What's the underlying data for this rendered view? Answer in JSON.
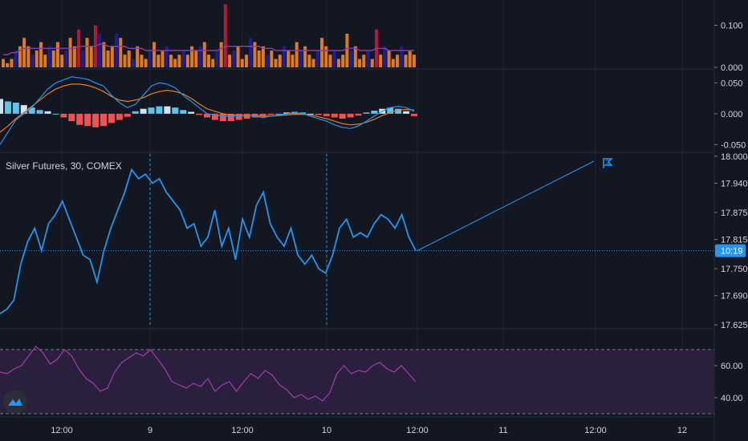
{
  "chart_title": "Silver Futures, 30, COMEX",
  "price_tag": "10:19",
  "colors": {
    "background": "#131722",
    "grid": "#1f2433",
    "axis_text": "#d1d4dc",
    "price": "#2196f3",
    "volume_up": "#e07a1f",
    "volume_down": "#1b1f9e",
    "volume_spike": "#b5173a",
    "volume_ma": "#8e3aa0",
    "macd": "#2196f3",
    "signal": "#f07a1f",
    "hist_pos": "#5fc4e8",
    "hist_light": "#cfe6f0",
    "hist_neg": "#ef5350",
    "rsi": "#a63bb0",
    "rsi_band": "#2a1f3d"
  },
  "icons": [
    "flag-icon",
    "logo-icon"
  ],
  "chart_data": [
    {
      "type": "bar",
      "panel": "volume",
      "yticks": [
        "0.100",
        "0.000"
      ],
      "ylim": [
        0,
        0.16
      ],
      "values": [
        0.02,
        0.01,
        0.02,
        0.04,
        0.05,
        0.07,
        0.05,
        0.03,
        0.04,
        0.06,
        0.03,
        0.05,
        0.04,
        0.06,
        0.03,
        0.04,
        0.07,
        0.05,
        0.09,
        0.04,
        0.07,
        0.05,
        0.1,
        0.08,
        0.06,
        0.04,
        0.05,
        0.08,
        0.07,
        0.03,
        0.04,
        0.02,
        0.05,
        0.03,
        0.02,
        0.04,
        0.06,
        0.03,
        0.04,
        0.05,
        0.03,
        0.02,
        0.03,
        0.04,
        0.03,
        0.05,
        0.04,
        0.05,
        0.06,
        0.03,
        0.02,
        0.04,
        0.06,
        0.15,
        0.03,
        0.04,
        0.05,
        0.02,
        0.03,
        0.07,
        0.06,
        0.04,
        0.05,
        0.03,
        0.04,
        0.02,
        0.03,
        0.05,
        0.04,
        0.03,
        0.06,
        0.04,
        0.05,
        0.03,
        0.02,
        0.04,
        0.07,
        0.05,
        0.03,
        0.04,
        0.02,
        0.03,
        0.08,
        0.04,
        0.05,
        0.02,
        0.03,
        0.04,
        0.02,
        0.09,
        0.03,
        0.05,
        0.04,
        0.02,
        0.03,
        0.05,
        0.03,
        0.04,
        0.03
      ],
      "ma": [
        0.03,
        0.03,
        0.035,
        0.035,
        0.04,
        0.045,
        0.045,
        0.045,
        0.045,
        0.045,
        0.045,
        0.045,
        0.045,
        0.045,
        0.045,
        0.045,
        0.045,
        0.045,
        0.05,
        0.05,
        0.05,
        0.05,
        0.05,
        0.055,
        0.055,
        0.05,
        0.05,
        0.05,
        0.05,
        0.05,
        0.045,
        0.045,
        0.045,
        0.045,
        0.04,
        0.04,
        0.04,
        0.04,
        0.04,
        0.04,
        0.04,
        0.04,
        0.04,
        0.04,
        0.04,
        0.04,
        0.04,
        0.04,
        0.04,
        0.04,
        0.04,
        0.04,
        0.045,
        0.05,
        0.05,
        0.05,
        0.05,
        0.05,
        0.05,
        0.05,
        0.05,
        0.05,
        0.045,
        0.045,
        0.045,
        0.04,
        0.04,
        0.04,
        0.04,
        0.04,
        0.04,
        0.04,
        0.04,
        0.04,
        0.04,
        0.04,
        0.04,
        0.04,
        0.04,
        0.04,
        0.04,
        0.04,
        0.045,
        0.045,
        0.045,
        0.04,
        0.04,
        0.04,
        0.04,
        0.045,
        0.045,
        0.045,
        0.04,
        0.04,
        0.04,
        0.04,
        0.04,
        0.04,
        0.04
      ]
    },
    {
      "type": "line",
      "panel": "macd",
      "yticks": [
        "0.050",
        "0.000",
        "-0.050"
      ],
      "ylim": [
        -0.06,
        0.07
      ],
      "macd": [
        -0.05,
        -0.03,
        -0.01,
        0.0,
        0.01,
        0.025,
        0.04,
        0.05,
        0.055,
        0.06,
        0.058,
        0.056,
        0.05,
        0.045,
        0.03,
        0.018,
        0.01,
        0.015,
        0.03,
        0.045,
        0.05,
        0.048,
        0.042,
        0.03,
        0.02,
        0.01,
        0.0,
        -0.002,
        -0.004,
        -0.004,
        -0.003,
        -0.002,
        -0.004,
        -0.006,
        -0.004,
        -0.002,
        0.0,
        0.001,
        0.0,
        -0.004,
        -0.008,
        -0.012,
        -0.018,
        -0.022,
        -0.024,
        -0.02,
        -0.012,
        -0.004,
        0.004,
        0.01,
        0.012,
        0.01,
        0.004
      ],
      "signal": [
        -0.03,
        -0.02,
        -0.008,
        0.002,
        0.012,
        0.022,
        0.032,
        0.04,
        0.045,
        0.048,
        0.048,
        0.046,
        0.042,
        0.036,
        0.028,
        0.022,
        0.02,
        0.022,
        0.026,
        0.032,
        0.036,
        0.038,
        0.036,
        0.032,
        0.025,
        0.016,
        0.008,
        0.004,
        0.0,
        -0.002,
        -0.003,
        -0.003,
        -0.003,
        -0.004,
        -0.004,
        -0.003,
        -0.002,
        -0.001,
        -0.001,
        -0.002,
        -0.005,
        -0.008,
        -0.012,
        -0.016,
        -0.018,
        -0.017,
        -0.014,
        -0.009,
        -0.003,
        0.002,
        0.006,
        0.007,
        0.006
      ],
      "hist": [
        0.024,
        0.02,
        0.018,
        0.014,
        0.01,
        0.006,
        0.004,
        0.0,
        -0.006,
        -0.012,
        -0.018,
        -0.02,
        -0.022,
        -0.02,
        -0.015,
        -0.01,
        -0.005,
        0.004,
        0.008,
        0.01,
        0.012,
        0.012,
        0.01,
        0.006,
        0.003,
        -0.002,
        -0.006,
        -0.01,
        -0.012,
        -0.012,
        -0.01,
        -0.008,
        -0.006,
        -0.004,
        -0.002,
        0.0,
        0.002,
        0.003,
        0.002,
        0.0,
        -0.002,
        -0.004,
        -0.006,
        -0.008,
        -0.006,
        -0.003,
        0.002,
        0.005,
        0.008,
        0.01,
        0.008,
        0.004,
        -0.004
      ]
    },
    {
      "type": "line",
      "panel": "price",
      "series": [
        {
          "name": "Silver Futures, 30, COMEX",
          "values": [
            17.65,
            17.66,
            17.68,
            17.76,
            17.81,
            17.84,
            17.79,
            17.85,
            17.87,
            17.9,
            17.86,
            17.82,
            17.78,
            17.77,
            17.72,
            17.79,
            17.84,
            17.88,
            17.92,
            17.97,
            17.95,
            17.96,
            17.94,
            17.95,
            17.92,
            17.9,
            17.88,
            17.84,
            17.85,
            17.8,
            17.82,
            17.88,
            17.8,
            17.84,
            17.77,
            17.86,
            17.82,
            17.89,
            17.92,
            17.85,
            17.82,
            17.8,
            17.84,
            17.78,
            17.76,
            17.78,
            17.75,
            17.74,
            17.78,
            17.84,
            17.86,
            17.82,
            17.83,
            17.82,
            17.85,
            17.87,
            17.86,
            17.84,
            17.87,
            17.82,
            17.79
          ]
        }
      ],
      "yticks": [
        "18.000",
        "17.940",
        "17.875",
        "17.815",
        "17.750",
        "17.690",
        "17.625"
      ],
      "ylim": [
        17.62,
        18.005
      ],
      "last": 17.79
    },
    {
      "type": "line",
      "panel": "rsi",
      "yticks": [
        "60.00",
        "40.00"
      ],
      "ylim": [
        28,
        82
      ],
      "values": [
        56,
        55,
        58,
        60,
        66,
        72,
        68,
        61,
        64,
        70,
        66,
        58,
        52,
        49,
        44,
        46,
        56,
        62,
        65,
        68,
        66,
        70,
        64,
        58,
        50,
        48,
        46,
        49,
        47,
        52,
        44,
        48,
        50,
        44,
        50,
        55,
        52,
        57,
        54,
        48,
        45,
        40,
        42,
        39,
        41,
        38,
        43,
        55,
        60,
        55,
        57,
        56,
        60,
        62,
        58,
        56,
        60,
        55,
        50
      ]
    },
    {
      "type": "table",
      "panel": "time-axis",
      "labels": [
        "12:00",
        "9",
        "12:00",
        "10",
        "12:00",
        "11",
        "12:00",
        "12"
      ]
    }
  ]
}
